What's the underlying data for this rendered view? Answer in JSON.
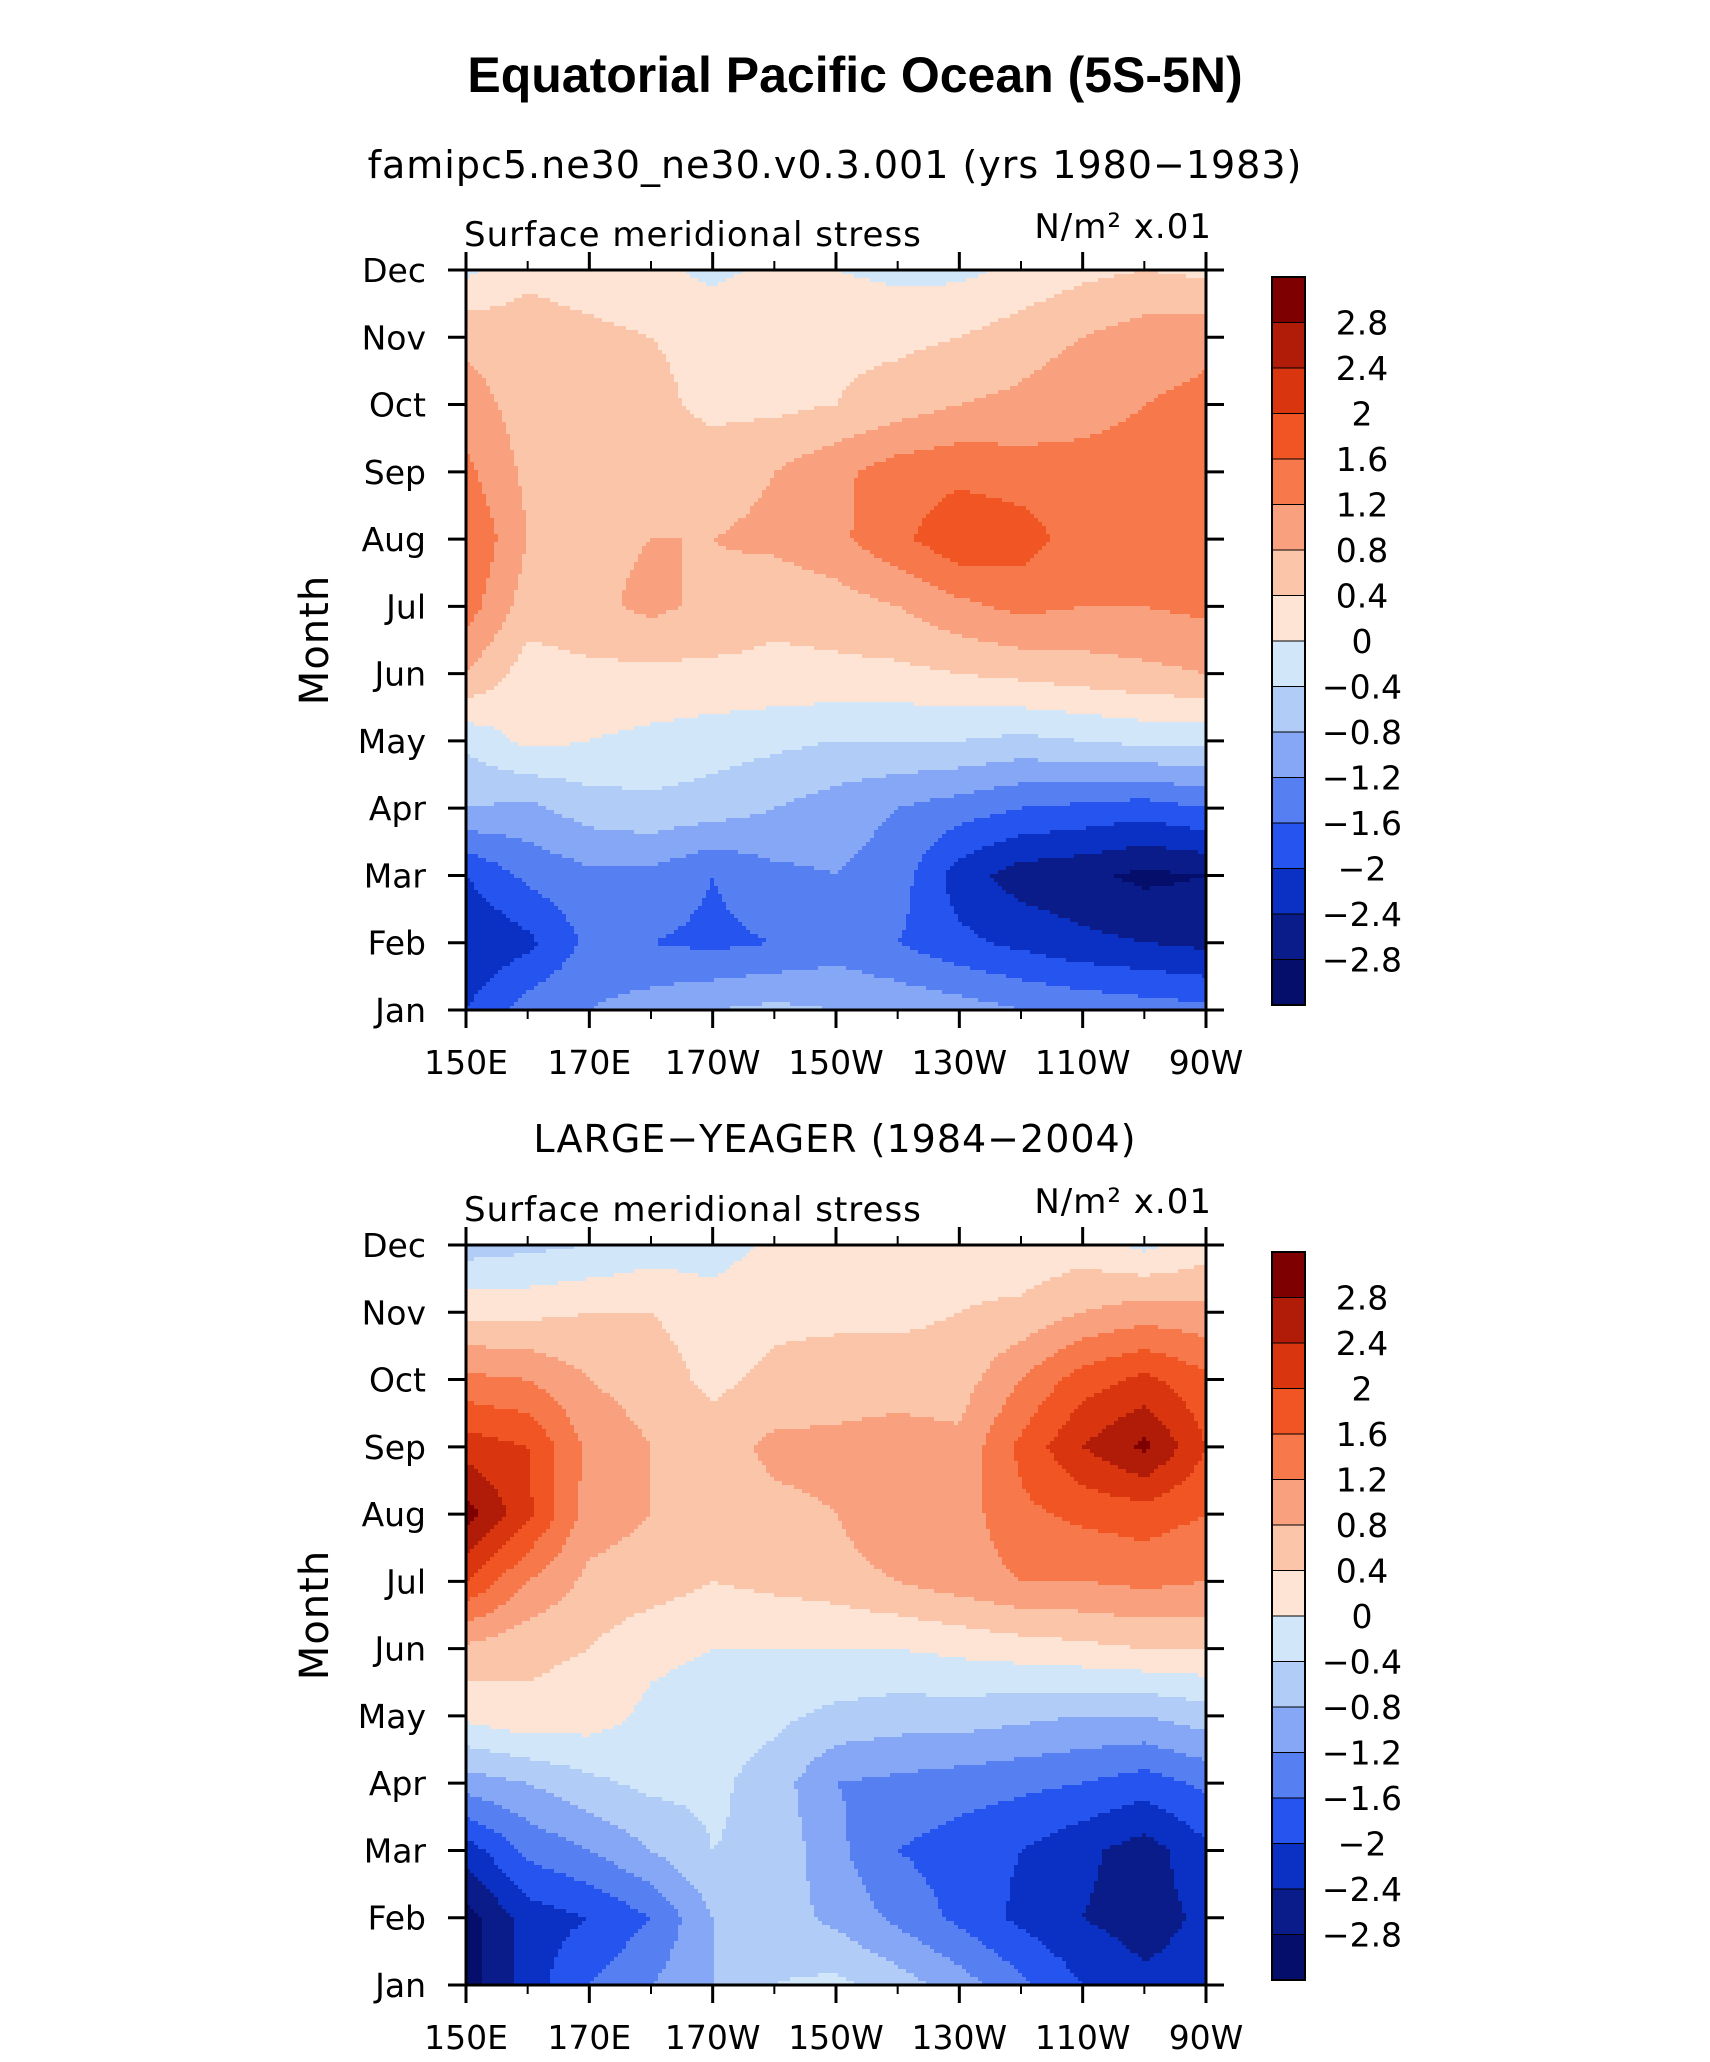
{
  "page": {
    "title": "Equatorial Pacific Ocean (5S-5N)"
  },
  "colorbar": {
    "levels": [
      "2.8",
      "2.4",
      "2",
      "1.6",
      "1.2",
      "0.8",
      "0.4",
      "0",
      "−0.4",
      "−0.8",
      "−1.2",
      "−1.6",
      "−2",
      "−2.4",
      "−2.8"
    ],
    "colors": [
      "#7f0000",
      "#b01c08",
      "#d9360f",
      "#f25524",
      "#f7784a",
      "#f9a07e",
      "#fbc5aa",
      "#fde4d5",
      "#d2e6fa",
      "#b0ccf7",
      "#86a7f5",
      "#567ff2",
      "#2654ef",
      "#0a30c4",
      "#0a1b8a",
      "#060e6b"
    ]
  },
  "chart_data": [
    {
      "type": "heatmap",
      "title": "famipc5.ne30_ne30.v0.3.001 (yrs 1980−1983)",
      "left_label": "Surface meridional stress",
      "units_label": "N/m² x.01",
      "ylabel": "Month",
      "x": [
        150,
        160,
        170,
        180,
        190,
        200,
        210,
        220,
        230,
        240,
        250,
        260,
        270
      ],
      "xticks": [
        "150E",
        "170E",
        "170W",
        "150W",
        "130W",
        "110W",
        "90W"
      ],
      "yticks": [
        "Jan",
        "Feb",
        "Mar",
        "Apr",
        "May",
        "Jun",
        "Jul",
        "Aug",
        "Sep",
        "Oct",
        "Nov",
        "Dec"
      ],
      "z": [
        [
          -2.0,
          -1.4,
          -1.2,
          -1.0,
          -0.8,
          -0.7,
          -0.8,
          -0.9,
          -1.0,
          -1.2,
          -1.3,
          -1.4,
          -1.5
        ],
        [
          -2.4,
          -2.1,
          -1.5,
          -1.6,
          -1.7,
          -1.6,
          -1.4,
          -1.6,
          -1.9,
          -2.1,
          -2.3,
          -2.4,
          -2.5
        ],
        [
          -2.0,
          -1.5,
          -1.3,
          -1.3,
          -1.6,
          -1.3,
          -1.2,
          -1.4,
          -2.2,
          -2.6,
          -2.7,
          -2.9,
          -2.8
        ],
        [
          -0.8,
          -0.9,
          -0.6,
          -0.5,
          -0.6,
          -0.8,
          -1.0,
          -1.2,
          -1.4,
          -1.6,
          -1.7,
          -1.8,
          -1.6
        ],
        [
          -0.3,
          0.1,
          0.0,
          -0.1,
          -0.2,
          -0.3,
          -0.4,
          -0.4,
          -0.4,
          -0.5,
          -0.4,
          -0.3,
          -0.3
        ],
        [
          0.8,
          0.2,
          0.3,
          0.3,
          0.3,
          0.3,
          0.3,
          0.3,
          0.4,
          0.5,
          0.6,
          0.7,
          0.8
        ],
        [
          1.4,
          0.6,
          0.7,
          0.9,
          0.7,
          0.5,
          0.6,
          0.8,
          1.1,
          1.3,
          1.2,
          1.2,
          1.3
        ],
        [
          1.6,
          0.8,
          0.7,
          0.8,
          0.8,
          0.9,
          1.1,
          1.5,
          1.9,
          1.8,
          1.4,
          1.3,
          1.3
        ],
        [
          1.3,
          0.7,
          0.6,
          0.6,
          0.6,
          0.8,
          1.1,
          1.4,
          1.5,
          1.4,
          1.3,
          1.3,
          1.3
        ],
        [
          1.0,
          0.6,
          0.4,
          0.5,
          0.3,
          0.3,
          0.4,
          0.6,
          0.8,
          0.9,
          1.1,
          1.2,
          1.3
        ],
        [
          0.7,
          0.6,
          0.5,
          0.4,
          0.3,
          0.3,
          0.3,
          0.3,
          0.4,
          0.6,
          0.8,
          1.0,
          1.1
        ],
        [
          -0.1,
          0.3,
          0.2,
          0.1,
          -0.1,
          0.1,
          0.0,
          -0.1,
          -0.1,
          0.1,
          0.3,
          0.4,
          0.3
        ]
      ]
    },
    {
      "type": "heatmap",
      "title": "LARGE−YEAGER (1984−2004)",
      "left_label": "Surface meridional stress",
      "units_label": "N/m² x.01",
      "ylabel": "Month",
      "x": [
        150,
        160,
        170,
        180,
        190,
        200,
        210,
        220,
        230,
        240,
        250,
        260,
        270
      ],
      "xticks": [
        "150E",
        "170E",
        "170W",
        "150W",
        "130W",
        "110W",
        "90W"
      ],
      "yticks": [
        "Jan",
        "Feb",
        "Mar",
        "Apr",
        "May",
        "Jun",
        "Jul",
        "Aug",
        "Sep",
        "Oct",
        "Nov",
        "Dec"
      ],
      "z": [
        [
          -3.0,
          -2.2,
          -1.6,
          -1.2,
          -0.8,
          -0.4,
          -0.3,
          -0.6,
          -1.0,
          -1.5,
          -2.0,
          -2.3,
          -2.2
        ],
        [
          -3.0,
          -2.2,
          -2.0,
          -1.6,
          -0.8,
          -0.6,
          -0.9,
          -1.3,
          -1.7,
          -2.1,
          -2.4,
          -2.6,
          -2.3
        ],
        [
          -2.2,
          -1.5,
          -1.2,
          -0.8,
          -0.4,
          -0.5,
          -1.1,
          -1.6,
          -1.8,
          -2.0,
          -2.3,
          -2.6,
          -2.1
        ],
        [
          -1.0,
          -0.8,
          -0.5,
          -0.3,
          -0.3,
          -0.6,
          -1.2,
          -1.3,
          -1.4,
          -1.5,
          -1.6,
          -1.8,
          -1.5
        ],
        [
          0.1,
          0.3,
          0.2,
          -0.1,
          -0.2,
          -0.3,
          -0.5,
          -0.6,
          -0.6,
          -0.7,
          -0.8,
          -0.8,
          -0.6
        ],
        [
          0.7,
          0.5,
          0.4,
          0.1,
          0.0,
          0.0,
          0.0,
          0.0,
          0.1,
          0.2,
          0.3,
          0.4,
          0.4
        ],
        [
          2.0,
          1.2,
          0.7,
          0.6,
          0.4,
          0.5,
          0.6,
          0.8,
          1.0,
          1.2,
          1.2,
          1.3,
          1.2
        ],
        [
          3.0,
          2.1,
          1.0,
          0.8,
          0.6,
          0.7,
          0.8,
          1.2,
          1.0,
          1.5,
          1.7,
          1.8,
          1.6
        ],
        [
          2.2,
          2.0,
          1.1,
          0.8,
          0.6,
          0.9,
          0.9,
          1.0,
          0.9,
          1.7,
          2.4,
          2.9,
          2.0
        ],
        [
          1.3,
          1.2,
          0.8,
          0.6,
          0.3,
          0.5,
          0.6,
          0.6,
          0.6,
          1.2,
          1.8,
          2.1,
          1.7
        ],
        [
          0.3,
          0.3,
          0.4,
          0.4,
          0.2,
          0.3,
          0.3,
          0.3,
          0.4,
          0.5,
          0.8,
          1.0,
          0.9
        ],
        [
          -0.6,
          -0.5,
          -0.4,
          -0.2,
          -0.2,
          0.1,
          0.1,
          0.2,
          0.2,
          0.1,
          0.2,
          -0.1,
          0.2
        ]
      ]
    }
  ]
}
